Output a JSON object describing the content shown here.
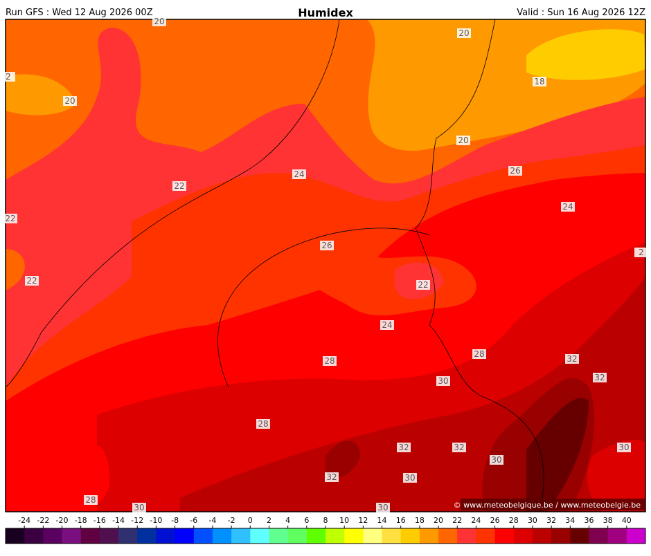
{
  "header": {
    "left": "Run GFS : Wed 12 Aug 2026 00Z",
    "title": "Humidex",
    "right": "Valid : Sun 16 Aug 2026 12Z"
  },
  "contour_labels": [
    "20",
    "20",
    "2",
    "18",
    "20",
    "20",
    "24",
    "26",
    "22",
    "24",
    "22",
    "26",
    "2",
    "22",
    "22",
    "24",
    "28",
    "28",
    "32",
    "32",
    "30",
    "28",
    "32",
    "32",
    "30",
    "30",
    "32",
    "30",
    "28",
    "30",
    "30"
  ],
  "credit": "© www.meteobelgique.be / www.meteobelgie.be",
  "colorbar": {
    "labels": [
      -24,
      -22,
      -20,
      -18,
      -16,
      -14,
      -12,
      -10,
      -8,
      -6,
      -4,
      -2,
      0,
      2,
      4,
      6,
      8,
      10,
      12,
      14,
      16,
      18,
      20,
      22,
      24,
      26,
      28,
      30,
      32,
      34,
      36,
      38,
      40
    ],
    "colors": [
      "#1a0020",
      "#3a0040",
      "#5a0060",
      "#7a1080",
      "#600040",
      "#501050",
      "#303070",
      "#0030a0",
      "#0010d0",
      "#0000ff",
      "#0050ff",
      "#0090ff",
      "#30c0ff",
      "#60ffff",
      "#60ff90",
      "#60ff60",
      "#60ff00",
      "#c0ff00",
      "#ffff00",
      "#ffff80",
      "#ffe040",
      "#ffcc00",
      "#ff9900",
      "#ff6600",
      "#ff3333",
      "#ff3300",
      "#ff0000",
      "#dd0000",
      "#bb0000",
      "#990000",
      "#660000",
      "#800050",
      "#a00080",
      "#cc00cc"
    ]
  }
}
